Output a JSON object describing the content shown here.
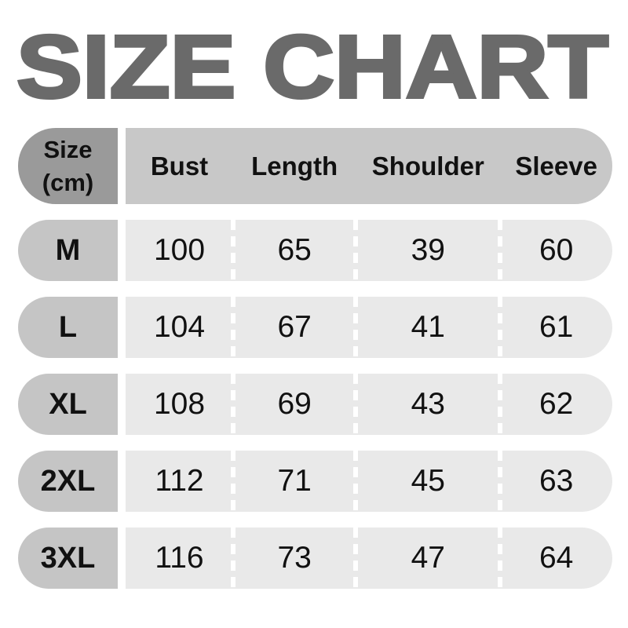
{
  "title": "SIZE CHART",
  "colors": {
    "title_color": "#6a6a6a",
    "header_size_bg": "#9a9a9a",
    "header_bg": "#c8c8c8",
    "row_size_bg": "#c5c5c5",
    "row_bg": "#e9e9e9",
    "text_color": "#111111",
    "page_bg": "#ffffff"
  },
  "table": {
    "header": {
      "size_line1": "Size",
      "size_line2": "(cm)",
      "columns": [
        "Bust",
        "Length",
        "Shoulder",
        "Sleeve"
      ]
    },
    "rows": [
      {
        "size": "M",
        "values": [
          "100",
          "65",
          "39",
          "60"
        ]
      },
      {
        "size": "L",
        "values": [
          "104",
          "67",
          "41",
          "61"
        ]
      },
      {
        "size": "XL",
        "values": [
          "108",
          "69",
          "43",
          "62"
        ]
      },
      {
        "size": "2XL",
        "values": [
          "112",
          "71",
          "45",
          "63"
        ]
      },
      {
        "size": "3XL",
        "values": [
          "116",
          "73",
          "47",
          "64"
        ]
      }
    ]
  },
  "chart_data": {
    "type": "table",
    "title": "SIZE CHART",
    "units": "cm",
    "columns": [
      "Size (cm)",
      "Bust",
      "Length",
      "Shoulder",
      "Sleeve"
    ],
    "rows": [
      [
        "M",
        100,
        65,
        39,
        60
      ],
      [
        "L",
        104,
        67,
        41,
        61
      ],
      [
        "XL",
        108,
        69,
        43,
        62
      ],
      [
        "2XL",
        112,
        71,
        45,
        63
      ],
      [
        "3XL",
        116,
        73,
        47,
        64
      ]
    ]
  }
}
